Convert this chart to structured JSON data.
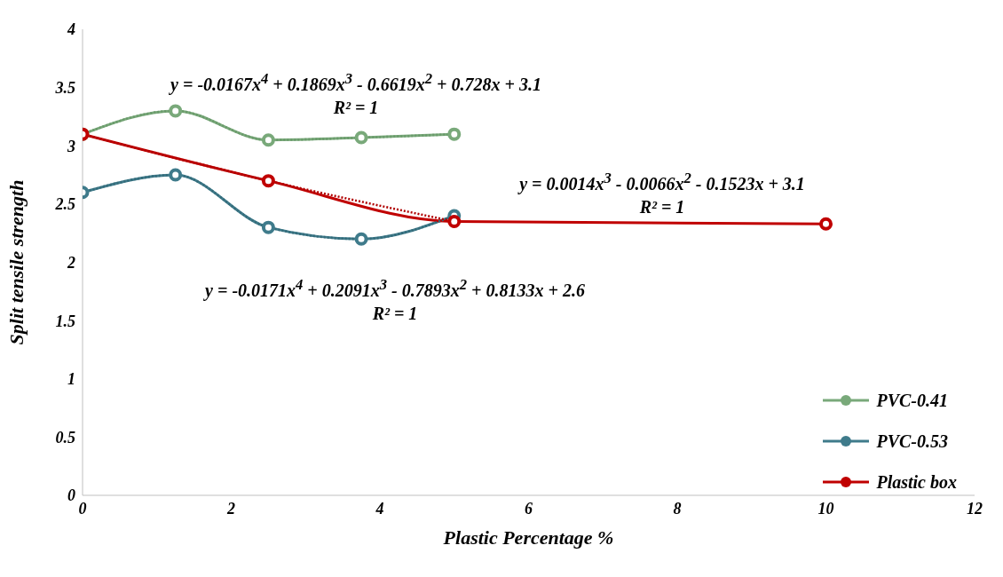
{
  "chart_data": {
    "type": "line",
    "xlabel": "Plastic Percentage %",
    "ylabel": "Split tensile strength",
    "xlim": [
      0,
      12
    ],
    "xticks": [
      0,
      2,
      4,
      6,
      8,
      10,
      12
    ],
    "ylim": [
      0,
      4
    ],
    "yticks": [
      0,
      0.5,
      1,
      1.5,
      2,
      2.5,
      3,
      3.5,
      4
    ],
    "legend": "right",
    "marker": "circle",
    "line_style": "solid",
    "series": [
      {
        "name": "PVC-0.41",
        "color": "#79a97a",
        "x": [
          0,
          1.25,
          2.5,
          3.75,
          5
        ],
        "values": [
          3.1,
          3.3,
          3.05,
          3.07,
          3.1
        ]
      },
      {
        "name": "PVC-0.53",
        "color": "#3f7b8b",
        "x": [
          0,
          1.25,
          2.5,
          3.75,
          5
        ],
        "values": [
          2.6,
          2.75,
          2.3,
          2.2,
          2.4
        ]
      },
      {
        "name": "Plastic box",
        "color": "#c00000",
        "x": [
          0,
          2.5,
          5,
          10
        ],
        "values": [
          3.1,
          2.7,
          2.35,
          2.33
        ]
      },
      {
        "type": "line",
        "color": "#6a9a6b",
        "line_style": "dotted",
        "marker": "none",
        "x": [
          0,
          1.25,
          2.5,
          3.75,
          5
        ],
        "values": [
          3.1,
          3.3,
          3.05,
          3.07,
          3.1
        ]
      },
      {
        "type": "line",
        "color": "#356b79",
        "line_style": "dotted",
        "marker": "none",
        "x": [
          0,
          1.25,
          2.5,
          3.75,
          5
        ],
        "values": [
          2.6,
          2.75,
          2.3,
          2.2,
          2.4
        ]
      },
      {
        "type": "line",
        "color": "#b00000",
        "line_style": "dotted",
        "marker": "none",
        "x": [
          0,
          2.5,
          5
        ],
        "values": [
          3.1,
          2.7,
          2.35
        ]
      }
    ],
    "annotations": [
      "y = -0.0167x$^{4}$ + 0.1869x$^{3}$ - 0.6619x$^{2}$ + 0.728x + 3.1\nR² = 1",
      "y = 0.0014x$^{3}$ - 0.0066x$^{2}$ - 0.1523x + 3.1\nR² = 1",
      "y = -0.0171x$^{4}$ + 0.2091x$^{3}$ - 0.7893x$^{2}$ + 0.8133x + 2.6\nR² = 1"
    ]
  }
}
